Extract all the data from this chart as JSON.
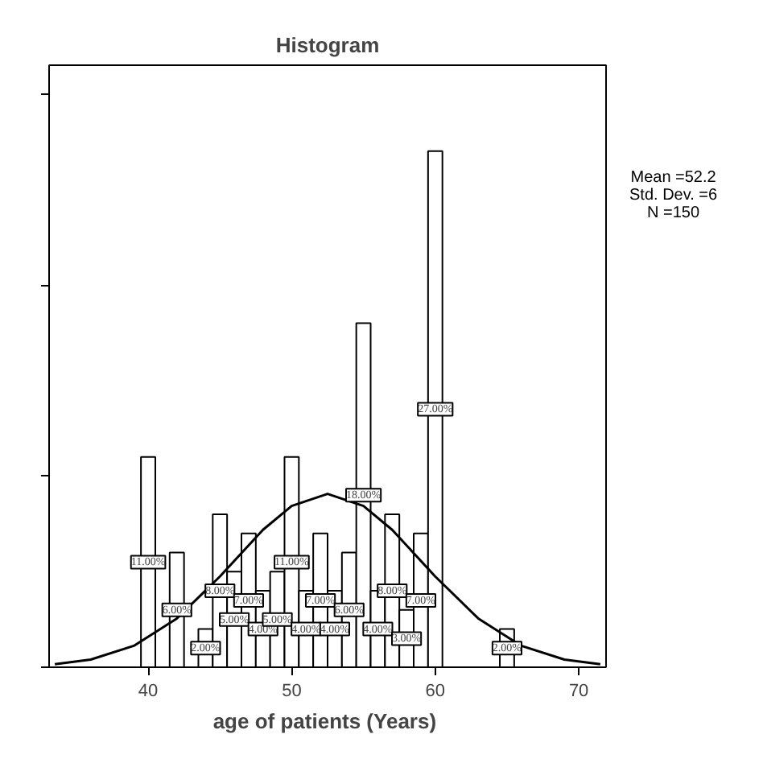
{
  "chart_data": {
    "type": "histogram",
    "title": "Histogram",
    "xlabel": "age of  patients (Years)",
    "bins": [
      39.5,
      40.5,
      41.5,
      42.5,
      43.5,
      44.5,
      45.5,
      46.5,
      47.5,
      48.5,
      49.5,
      50.5,
      51.5,
      52.5,
      53.5,
      54.5,
      55.5,
      56.5,
      57.5,
      58.5,
      59.5,
      60.5,
      61.5,
      62.5,
      63.5,
      64.5,
      65.5
    ],
    "values": [
      11,
      0,
      6,
      0,
      2,
      8,
      5,
      7,
      4,
      5,
      11,
      4,
      7,
      4,
      6,
      18,
      4,
      8,
      3,
      7,
      27,
      0,
      0,
      0,
      0,
      2
    ],
    "value_labels": [
      "11.00%",
      null,
      "6.00%",
      null,
      "2.00%",
      "8.00%",
      "5.00%",
      "7.00%",
      "4.00%",
      "5.00%",
      "11.00%",
      "4.00%",
      "7.00%",
      "4.00%",
      "6.00%",
      "18.00%",
      "4.00%",
      "8.00%",
      "3.00%",
      "7.00%",
      "27.00%",
      null,
      null,
      null,
      null,
      "2.00%"
    ],
    "color": "#ffffff",
    "series": [
      {
        "type": "line",
        "color": "#000000",
        "x": [
          33.5,
          36,
          39,
          42,
          45,
          48,
          50,
          52.5,
          55,
          57,
          60,
          63,
          66,
          69,
          71.5
        ],
        "values": [
          0.16,
          0.4,
          1.12,
          2.55,
          4.75,
          7.19,
          8.44,
          9.07,
          8.44,
          7.19,
          4.75,
          2.55,
          1.12,
          0.4,
          0.16
        ]
      }
    ],
    "xlim": [
      33.1,
      71.9
    ],
    "xticks": [
      40,
      50,
      60,
      70
    ],
    "ylim": [
      0,
      31.5
    ],
    "yticks": [
      0,
      10,
      20,
      30
    ],
    "tick_labels": "x",
    "grid": false,
    "annotations": [
      "Mean =52.2",
      "Std. Dev. =6",
      "N =150"
    ]
  }
}
